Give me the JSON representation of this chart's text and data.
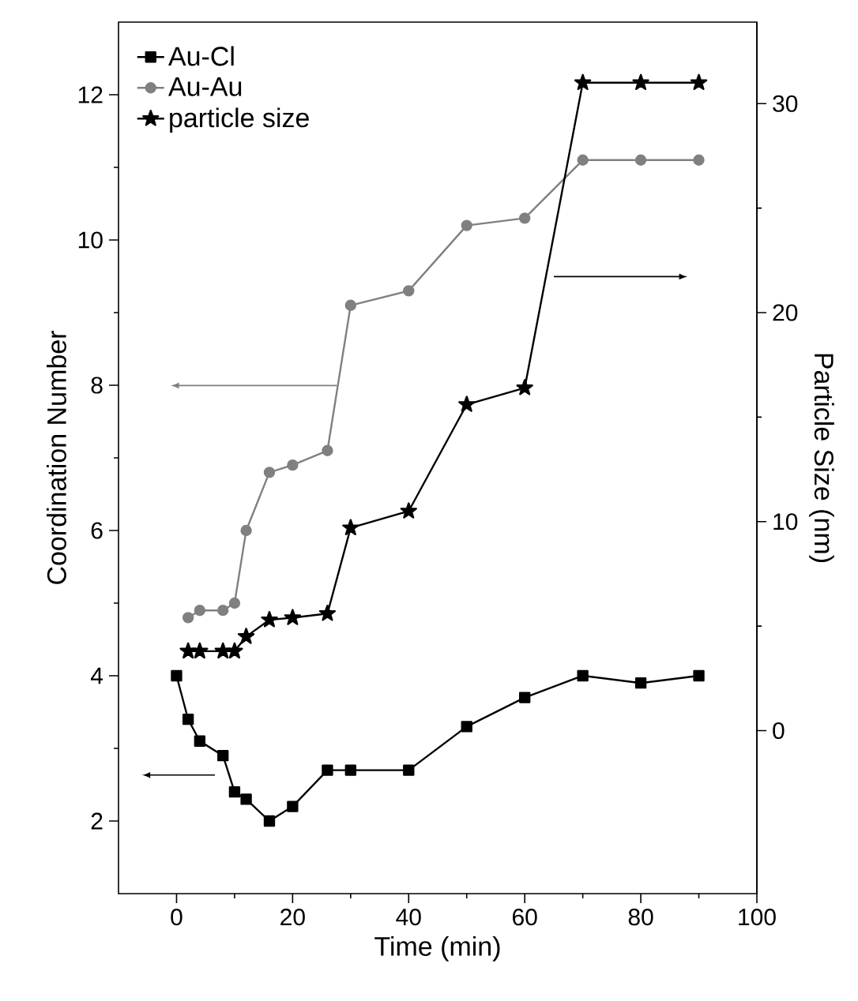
{
  "chart_data": {
    "type": "line",
    "xlabel": "Time (min)",
    "ylabel": "Coordination Number",
    "y2label": "Particle Size (nm)",
    "xlim": [
      -10,
      100
    ],
    "xticks": [
      0,
      20,
      40,
      60,
      80,
      100
    ],
    "ylim": [
      1,
      13
    ],
    "yticks": [
      2,
      4,
      6,
      8,
      10,
      12
    ],
    "y2lim": [
      -7.8,
      33.9
    ],
    "y2ticks": [
      0,
      10,
      20,
      30
    ],
    "legend": "top left",
    "grid": false,
    "line_style": "solid",
    "series": [
      {
        "name": "Au-Cl",
        "color": "#000000",
        "marker": "square",
        "x": [
          0,
          2,
          4,
          8,
          10,
          12,
          16,
          20,
          26,
          30,
          40,
          50,
          60,
          70,
          80,
          90
        ],
        "values": [
          4.0,
          3.4,
          3.1,
          2.9,
          2.4,
          2.3,
          2.0,
          2.2,
          2.7,
          2.7,
          2.7,
          3.3,
          3.7,
          4.0,
          3.9,
          4.0
        ]
      },
      {
        "name": "Au-Au",
        "color": "#808080",
        "marker": "circle",
        "x": [
          2,
          4,
          8,
          10,
          12,
          16,
          20,
          26,
          30,
          40,
          50,
          60,
          70,
          80,
          90
        ],
        "values": [
          4.8,
          4.9,
          4.9,
          5.0,
          6.0,
          6.8,
          6.9,
          7.1,
          9.1,
          9.3,
          10.2,
          10.3,
          11.1,
          11.1,
          11.1
        ]
      },
      {
        "name": "particle size",
        "color": "#000000",
        "marker": "star",
        "axis": "y2",
        "x": [
          2,
          4,
          8,
          10,
          12,
          16,
          20,
          26,
          30,
          40,
          50,
          60,
          70,
          80,
          90
        ],
        "values": [
          3.8,
          3.8,
          3.8,
          3.8,
          4.5,
          5.3,
          5.4,
          5.6,
          9.7,
          10.5,
          15.6,
          16.4,
          31.0,
          31.0,
          31.0
        ]
      }
    ]
  }
}
